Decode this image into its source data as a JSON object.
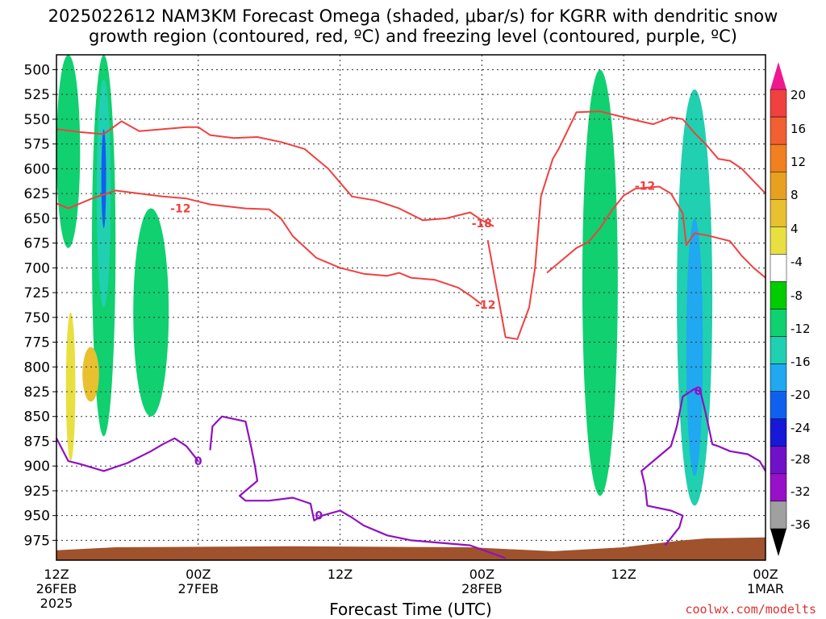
{
  "title_lines": [
    "2025022612 NAM3KM Forecast Omega (shaded, μbar/s) for KGRR with dendritic snow",
    "growth region (contoured, red, ºC) and freezing level (contoured, purple, ºC)"
  ],
  "xaxis_title": "Forecast Time (UTC)",
  "credit": "coolwx.com/modelts",
  "colors": {
    "omega_scale": [
      "#f01890",
      "#f04040",
      "#f06030",
      "#f08020",
      "#e8a020",
      "#e8c030",
      "#e8e040",
      "#ffffff",
      "#00cc00",
      "#10d070",
      "#20d0b0",
      "#20a8f0",
      "#1060f0",
      "#1818d8",
      "#7010c8",
      "#9810c8",
      "#a0a0a0",
      "#000000"
    ],
    "dgz_contour": "#f04040",
    "freezing_contour": "#9010c0",
    "terrain": "#a0522d"
  },
  "chart_data": {
    "type": "time-height section",
    "title": "2025022612 NAM3KM Forecast Omega (shaded, μbar/s) for KGRR with dendritic snow growth region (contoured, red, ºC) and freezing level (contoured, purple, ºC)",
    "xlabel": "Forecast Time (UTC)",
    "ylabel": "",
    "x_range_hours": [
      0,
      60
    ],
    "y_range_hpa": [
      485,
      995
    ],
    "y_ticks": [
      500,
      525,
      550,
      575,
      600,
      625,
      650,
      675,
      700,
      725,
      750,
      775,
      800,
      825,
      850,
      875,
      900,
      925,
      950,
      975
    ],
    "x_ticks": [
      {
        "hour": 0,
        "lines": [
          "12Z",
          "26FEB",
          "2025"
        ]
      },
      {
        "hour": 12,
        "lines": [
          "00Z",
          "27FEB"
        ]
      },
      {
        "hour": 24,
        "lines": [
          "12Z"
        ]
      },
      {
        "hour": 36,
        "lines": [
          "00Z",
          "28FEB"
        ]
      },
      {
        "hour": 48,
        "lines": [
          "12Z"
        ]
      },
      {
        "hour": 60,
        "lines": [
          "00Z",
          "1MAR"
        ]
      }
    ],
    "grid": true,
    "colorbar": {
      "label_values": [
        20,
        16,
        12,
        8,
        4,
        -4,
        -8,
        -12,
        -16,
        -20,
        -24,
        -28,
        -32,
        -36
      ],
      "units": "μbar/s"
    },
    "contour_labels": [
      {
        "text": "-12",
        "hour": 10.5,
        "hpa": 640
      },
      {
        "text": "-18",
        "hour": 36.0,
        "hpa": 655
      },
      {
        "text": "-12",
        "hour": 36.3,
        "hpa": 737
      },
      {
        "text": "-12",
        "hour": 49.8,
        "hpa": 617
      },
      {
        "text": "0",
        "hour": 12.0,
        "hpa": 895
      },
      {
        "text": "0",
        "hour": 22.2,
        "hpa": 950
      },
      {
        "text": "0",
        "hour": 54.3,
        "hpa": 824
      }
    ],
    "dgz_upper_contour": [
      [
        0,
        560
      ],
      [
        2,
        563
      ],
      [
        4,
        565
      ],
      [
        5.5,
        552
      ],
      [
        7,
        562
      ],
      [
        9,
        560
      ],
      [
        11,
        558
      ],
      [
        12,
        558
      ],
      [
        13,
        566
      ],
      [
        15,
        569
      ],
      [
        17,
        568
      ],
      [
        19,
        573
      ],
      [
        21,
        580
      ],
      [
        23,
        600
      ],
      [
        25,
        628
      ],
      [
        27,
        632
      ],
      [
        29,
        640
      ],
      [
        31,
        652
      ],
      [
        33,
        650
      ],
      [
        35,
        644
      ],
      [
        36,
        652
      ],
      [
        37,
        658
      ]
    ],
    "dgz_lower_contour": [
      [
        0,
        635
      ],
      [
        1,
        640
      ],
      [
        3,
        630
      ],
      [
        5,
        622
      ],
      [
        7,
        625
      ],
      [
        9,
        628
      ],
      [
        11,
        630
      ],
      [
        13,
        636
      ],
      [
        16,
        640
      ],
      [
        18,
        641
      ],
      [
        19,
        650
      ],
      [
        20,
        668
      ],
      [
        22,
        690
      ],
      [
        24,
        700
      ],
      [
        26,
        706
      ],
      [
        28,
        708
      ],
      [
        29,
        705
      ],
      [
        30,
        710
      ],
      [
        32,
        712
      ],
      [
        34,
        720
      ],
      [
        35,
        728
      ],
      [
        36,
        737
      ]
    ],
    "dgz_right_upper_contour": [
      [
        36.5,
        672
      ],
      [
        38,
        770
      ],
      [
        39,
        772
      ],
      [
        40,
        740
      ],
      [
        40.5,
        700
      ],
      [
        41,
        628
      ],
      [
        42,
        590
      ],
      [
        42.5,
        580
      ],
      [
        44,
        543
      ],
      [
        46,
        542
      ],
      [
        47,
        545
      ],
      [
        49,
        551
      ],
      [
        50.5,
        555
      ],
      [
        52,
        548
      ],
      [
        53,
        550
      ],
      [
        54,
        564
      ],
      [
        55,
        576
      ],
      [
        56,
        590
      ],
      [
        57,
        592
      ],
      [
        58,
        600
      ],
      [
        60,
        625
      ]
    ],
    "dgz_right_lower_contour": [
      [
        41.5,
        705
      ],
      [
        42,
        700
      ],
      [
        43,
        690
      ],
      [
        44,
        680
      ],
      [
        45,
        674
      ],
      [
        46,
        660
      ],
      [
        47,
        642
      ],
      [
        48,
        627
      ],
      [
        49,
        620
      ],
      [
        51,
        618
      ],
      [
        52,
        625
      ],
      [
        53,
        645
      ],
      [
        53.3,
        677
      ],
      [
        54,
        665
      ],
      [
        55,
        667
      ],
      [
        57,
        673
      ],
      [
        58,
        688
      ],
      [
        59,
        700
      ],
      [
        60,
        710
      ]
    ],
    "freezing_contour_left": [
      [
        0,
        872
      ],
      [
        1,
        895
      ],
      [
        2,
        898
      ],
      [
        4,
        905
      ],
      [
        6,
        897
      ],
      [
        8,
        885
      ],
      [
        9,
        878
      ],
      [
        10,
        872
      ],
      [
        11,
        880
      ],
      [
        12,
        895
      ]
    ],
    "freezing_contour_mid": [
      [
        13,
        884
      ],
      [
        13.2,
        860
      ],
      [
        14,
        850
      ],
      [
        16,
        855
      ],
      [
        16.5,
        882
      ],
      [
        16.8,
        900
      ],
      [
        17,
        915
      ],
      [
        15.5,
        930
      ],
      [
        16,
        935
      ],
      [
        18,
        935
      ],
      [
        20,
        932
      ],
      [
        21.5,
        938
      ],
      [
        21.8,
        955
      ],
      [
        22.5,
        950
      ],
      [
        24,
        945
      ],
      [
        25,
        952
      ],
      [
        26,
        960
      ],
      [
        28,
        970
      ],
      [
        30,
        975
      ],
      [
        33,
        978
      ],
      [
        35,
        980
      ],
      [
        38,
        993
      ]
    ],
    "freezing_contour_right": [
      [
        51.5,
        980
      ],
      [
        52.7,
        962
      ],
      [
        53,
        950
      ],
      [
        52,
        945
      ],
      [
        50,
        940
      ],
      [
        49.8,
        920
      ],
      [
        49.5,
        905
      ],
      [
        50.5,
        895
      ],
      [
        52,
        880
      ],
      [
        52.5,
        860
      ],
      [
        53,
        830
      ],
      [
        54,
        822
      ],
      [
        54.5,
        825
      ],
      [
        55,
        850
      ],
      [
        55.5,
        878
      ],
      [
        56,
        880
      ],
      [
        57,
        885
      ],
      [
        58.5,
        888
      ],
      [
        59.5,
        895
      ],
      [
        60,
        905
      ]
    ],
    "omega_regions": [
      {
        "level": -8,
        "hour_range": [
          0,
          2
        ],
        "hpa_range": [
          485,
          680
        ]
      },
      {
        "level": -8,
        "hour_range": [
          3,
          5
        ],
        "hpa_range": [
          485,
          870
        ]
      },
      {
        "level": -12,
        "hour_range": [
          3.4,
          4.6
        ],
        "hpa_range": [
          510,
          740
        ]
      },
      {
        "level": -20,
        "hour_range": [
          3.8,
          4.2
        ],
        "hpa_range": [
          560,
          660
        ]
      },
      {
        "level": -8,
        "hour_range": [
          6.5,
          9.5
        ],
        "hpa_range": [
          640,
          850
        ]
      },
      {
        "level": 8,
        "hour_range": [
          2.2,
          3.6
        ],
        "hpa_range": [
          780,
          835
        ]
      },
      {
        "level": 4,
        "hour_range": [
          0.8,
          1.6
        ],
        "hpa_range": [
          745,
          895
        ]
      },
      {
        "level": -8,
        "hour_range": [
          44.5,
          47.5
        ],
        "hpa_range": [
          500,
          930
        ]
      },
      {
        "level": -12,
        "hour_range": [
          52.5,
          55.5
        ],
        "hpa_range": [
          520,
          940
        ]
      },
      {
        "level": -16,
        "hour_range": [
          53.3,
          54.7
        ],
        "hpa_range": [
          650,
          910
        ]
      }
    ]
  }
}
